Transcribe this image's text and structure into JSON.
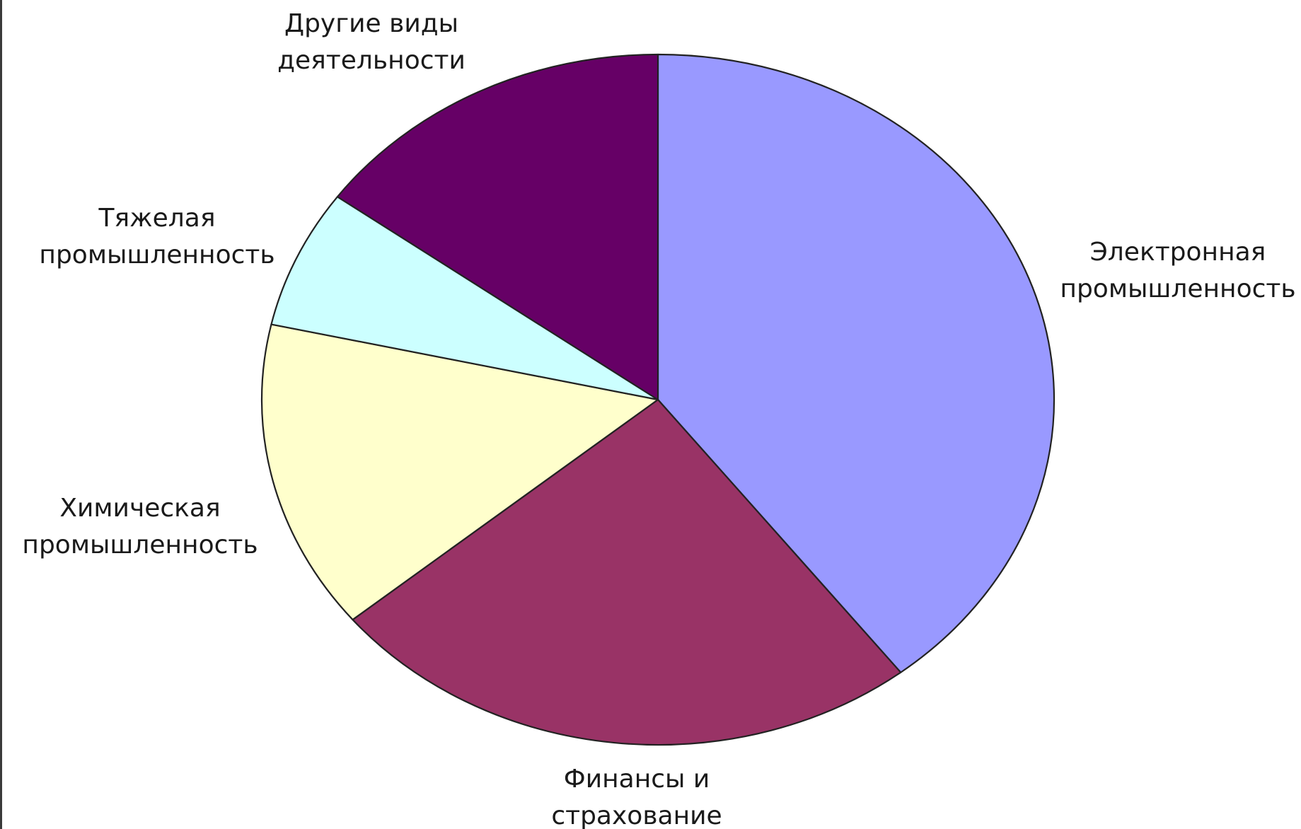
{
  "chart_data": {
    "type": "pie",
    "start_angle_deg": 90,
    "direction": "clockwise",
    "slices": [
      {
        "label": [
          "Электронная",
          "промышленность"
        ],
        "value": 39.5,
        "color": "#9999ff"
      },
      {
        "label": [
          "Финансы и",
          "страхование"
        ],
        "value": 24.5,
        "color": "#993366"
      },
      {
        "label": [
          "Химическая",
          "промышленность"
        ],
        "value": 14.5,
        "color": "#ffffcc"
      },
      {
        "label": [
          "Тяжелая",
          "промышленность"
        ],
        "value": 6.5,
        "color": "#ccffff"
      },
      {
        "label": [
          "Другие виды",
          "деятельности"
        ],
        "value": 15.0,
        "color": "#660066"
      }
    ]
  }
}
